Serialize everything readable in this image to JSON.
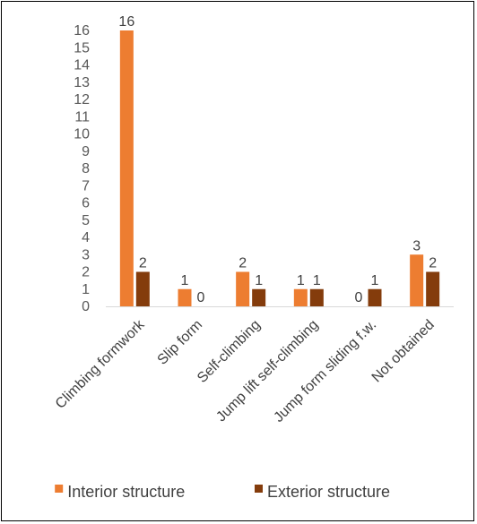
{
  "chart_data": {
    "type": "bar",
    "title": "",
    "xlabel": "",
    "ylabel": "",
    "categories": [
      "Climbing formwork",
      "Slip form",
      "Self-climbing",
      "Jump lift self-climbing",
      "Jump form sliding f.w.",
      "Not obtained"
    ],
    "series": [
      {
        "name": "Interior structure",
        "values": [
          16,
          1,
          2,
          1,
          0,
          3
        ],
        "color": "#ED7D31"
      },
      {
        "name": "Exterior structure",
        "values": [
          2,
          0,
          1,
          1,
          1,
          2
        ],
        "color": "#843C0C"
      }
    ],
    "ylim": [
      0,
      16
    ],
    "yticks": [
      "0",
      "1",
      "2",
      "3",
      "4",
      "5",
      "6",
      "7",
      "8",
      "9",
      "10",
      "11",
      "12",
      "13",
      "14",
      "15",
      "16"
    ],
    "grid": false,
    "data_labels": true,
    "legend_position": "bottom"
  }
}
